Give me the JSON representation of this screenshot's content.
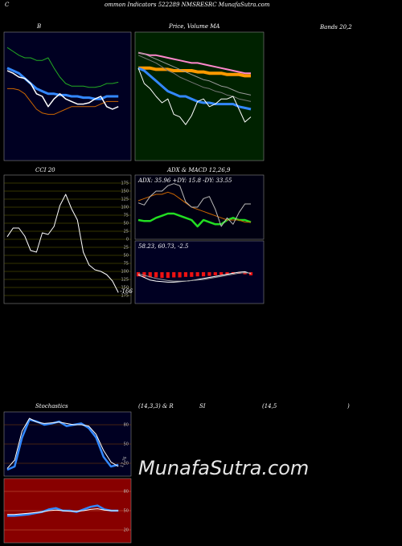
{
  "header": {
    "initial": "C",
    "title": "ommon  Indicators 522289 NMSRESRC MunafaSutra.com",
    "bands": "Bands 20,2",
    "watermark": "MunafaSutra.com",
    "stoch_heading": [
      "Stochastics",
      "(14,3,3) & R",
      "SI",
      "(14,5",
      ")"
    ]
  },
  "chart_data": [
    {
      "type": "line",
      "title": "B",
      "background": "#000022",
      "ylim": [
        0,
        100
      ],
      "series": [
        {
          "color": "#22aa22",
          "linewidth": 1,
          "values": [
            88,
            85,
            82,
            80,
            80,
            78,
            78,
            80,
            72,
            65,
            60,
            58,
            58,
            58,
            57,
            57,
            58,
            60,
            60,
            61
          ]
        },
        {
          "color": "#3388ff",
          "linewidth": 3,
          "values": [
            72,
            70,
            68,
            64,
            60,
            56,
            54,
            52,
            52,
            51,
            51,
            50,
            50,
            49,
            49,
            48,
            48,
            50,
            50,
            50
          ]
        },
        {
          "color": "#cc6600",
          "linewidth": 1,
          "values": [
            56,
            56,
            55,
            52,
            46,
            40,
            37,
            36,
            36,
            38,
            40,
            42,
            42,
            42,
            42,
            42,
            44,
            46,
            46,
            46
          ]
        },
        {
          "color": "#ffffff",
          "linewidth": 1.5,
          "values": [
            70,
            68,
            65,
            64,
            60,
            52,
            50,
            42,
            48,
            52,
            48,
            46,
            44,
            44,
            45,
            48,
            50,
            42,
            40,
            42
          ]
        }
      ]
    },
    {
      "type": "line",
      "title": "Price, Volume MA",
      "background": "#002200",
      "ylim": [
        0,
        100
      ],
      "series": [
        {
          "color": "#ff88cc",
          "linewidth": 2,
          "values": [
            84,
            83,
            82,
            82,
            81,
            80,
            79,
            78,
            77,
            76,
            76,
            75,
            74,
            73,
            72,
            71,
            70,
            69,
            68,
            68
          ]
        },
        {
          "color": "#ff9900",
          "linewidth": 4,
          "values": [
            72,
            72,
            72,
            71,
            71,
            71,
            70,
            70,
            70,
            70,
            69,
            69,
            68,
            68,
            68,
            67,
            67,
            67,
            66,
            66
          ]
        },
        {
          "color": "#999999",
          "linewidth": 1,
          "values": [
            84,
            83,
            81,
            79,
            77,
            75,
            73,
            71,
            69,
            67,
            65,
            63,
            62,
            60,
            58,
            57,
            55,
            53,
            52,
            51
          ]
        },
        {
          "color": "#777777",
          "linewidth": 1,
          "values": [
            82,
            80,
            78,
            76,
            73,
            70,
            68,
            65,
            63,
            61,
            59,
            57,
            56,
            54,
            53,
            51,
            50,
            48,
            47,
            46
          ]
        },
        {
          "color": "#3388ff",
          "linewidth": 3,
          "values": [
            72,
            70,
            66,
            62,
            58,
            54,
            52,
            50,
            50,
            48,
            46,
            45,
            45,
            44,
            44,
            44,
            44,
            42,
            41,
            40
          ]
        },
        {
          "color": "#ffffff",
          "linewidth": 1,
          "values": [
            72,
            60,
            56,
            50,
            45,
            48,
            36,
            34,
            28,
            35,
            46,
            48,
            42,
            44,
            48,
            48,
            50,
            40,
            30,
            34
          ]
        }
      ]
    },
    {
      "type": "line",
      "title": "CCI 20",
      "background": "#000000",
      "grid_color": "#666600",
      "ylim": [
        -200,
        200
      ],
      "yticks": [
        175,
        150,
        125,
        100,
        75,
        50,
        25,
        0,
        {
          "value": -25,
          "label": "25"
        },
        {
          "value": -50,
          "label": "50"
        },
        {
          "value": -75,
          "label": "75"
        },
        {
          "value": -100,
          "label": "100"
        },
        {
          "value": -125,
          "label": "125"
        },
        {
          "value": -150,
          "label": "150"
        },
        {
          "value": -175,
          "label": "175"
        }
      ],
      "series": [
        {
          "color": "#ffffff",
          "linewidth": 1,
          "values": [
            8,
            35,
            35,
            10,
            -35,
            -40,
            20,
            15,
            40,
            105,
            140,
            95,
            60,
            -40,
            -80,
            -95,
            -100,
            -110,
            -130,
            -166
          ]
        }
      ]
    },
    {
      "type": "line",
      "title": "ADX  & MACD 12,26,9",
      "annotation": "ADX: 35.96  +DY: 15.8  -DY: 33.55",
      "background": "#000011",
      "ylim": [
        0,
        60
      ],
      "series": [
        {
          "color": "#22dd22",
          "linewidth": 2.5,
          "values": [
            18,
            17,
            17,
            20,
            22,
            24,
            24,
            22,
            20,
            18,
            12,
            18,
            16,
            14,
            14,
            18,
            20,
            18,
            18,
            16
          ]
        },
        {
          "color": "#cc6600",
          "linewidth": 1,
          "values": [
            36,
            38,
            40,
            42,
            42,
            44,
            42,
            38,
            34,
            30,
            28,
            26,
            24,
            22,
            20,
            18,
            18,
            18,
            16,
            16
          ]
        },
        {
          "color": "#bbbbbb",
          "linewidth": 1,
          "values": [
            34,
            32,
            40,
            45,
            45,
            50,
            52,
            50,
            35,
            30,
            30,
            38,
            40,
            28,
            12,
            20,
            14,
            25,
            33,
            33
          ]
        }
      ]
    },
    {
      "type": "macd",
      "annotation": "58.23,  60.73,  -2.5",
      "background": "#000022",
      "ylim": [
        -6,
        6
      ],
      "histogram_color": "#ee1111",
      "histogram": [
        -0.8,
        -0.9,
        -1,
        -1,
        -1.1,
        -1.1,
        -1,
        -1,
        -0.9,
        -0.9,
        -0.8,
        -0.8,
        -0.7,
        -0.6,
        -0.5,
        -0.4,
        -0.3,
        -0.3,
        -0.4,
        -0.6
      ],
      "series": [
        {
          "color": "#ffffff",
          "linewidth": 1,
          "values": [
            -0.5,
            -1,
            -1.5,
            -1.7,
            -1.8,
            -1.9,
            -1.9,
            -1.8,
            -1.7,
            -1.6,
            -1.4,
            -1.2,
            -1,
            -0.8,
            -0.6,
            -0.4,
            -0.2,
            0,
            0.1,
            -0.3
          ]
        },
        {
          "color": "#999999",
          "linewidth": 1,
          "values": [
            -0.3,
            -0.6,
            -0.9,
            -1.2,
            -1.4,
            -1.6,
            -1.7,
            -1.7,
            -1.7,
            -1.6,
            -1.5,
            -1.4,
            -1.2,
            -1,
            -0.8,
            -0.6,
            -0.4,
            -0.2,
            -0.1,
            -0.2
          ]
        }
      ]
    },
    {
      "type": "line",
      "background": "#000022",
      "grid_color": "#884400",
      "ylim": [
        0,
        100
      ],
      "yticks": [
        80,
        50,
        20
      ],
      "series": [
        {
          "color": "#3388ff",
          "linewidth": 2.5,
          "values": [
            10,
            15,
            60,
            88,
            85,
            80,
            82,
            85,
            78,
            80,
            82,
            75,
            60,
            30,
            15,
            17.76
          ]
        },
        {
          "color": "#ffffff",
          "linewidth": 1,
          "values": [
            12,
            25,
            70,
            90,
            84,
            82,
            83,
            84,
            82,
            80,
            80,
            78,
            65,
            40,
            22,
            15
          ]
        }
      ]
    },
    {
      "type": "line",
      "background": "#880000",
      "grid_color": "#cc6644",
      "ylim": [
        0,
        100
      ],
      "yticks": [
        80,
        50,
        20
      ],
      "series": [
        {
          "color": "#3388ff",
          "linewidth": 2.5,
          "values": [
            42,
            42,
            43,
            44,
            46,
            48,
            52,
            54,
            50,
            50,
            48,
            52,
            56,
            58,
            52,
            50,
            50
          ]
        },
        {
          "color": "#ffffff",
          "linewidth": 1,
          "values": [
            44,
            44,
            45,
            46,
            47,
            48,
            50,
            51,
            50,
            49,
            49,
            50,
            52,
            53,
            51,
            50,
            50
          ]
        }
      ]
    }
  ]
}
